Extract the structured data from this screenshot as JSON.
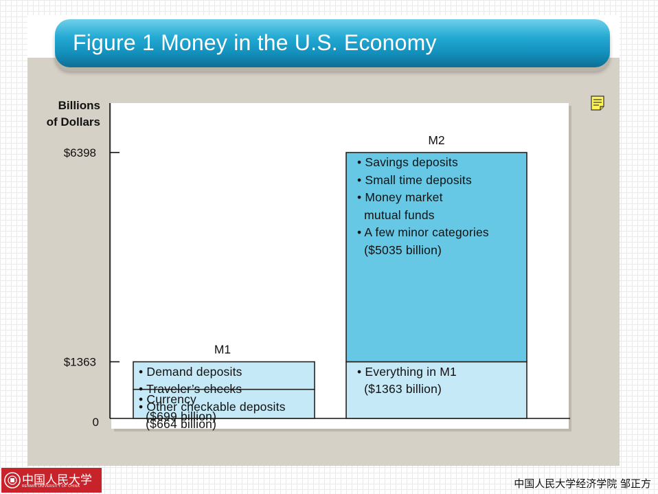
{
  "title": "Figure 1 Money in the U.S. Economy",
  "chart_data": {
    "type": "bar",
    "ylabel": [
      "Billions",
      "of Dollars"
    ],
    "ylim": [
      0,
      6398
    ],
    "yticks": [
      {
        "value": 0,
        "label": "0"
      },
      {
        "value": 1363,
        "label": "$1363"
      },
      {
        "value": 6398,
        "label": "$6398"
      }
    ],
    "categories": [
      "M1",
      "M2"
    ],
    "bars": [
      {
        "name": "M1",
        "segments": [
          {
            "value": 699,
            "lines": [
              "• Currency",
              "  ($699 billion)"
            ],
            "color": "#c5e9f6"
          },
          {
            "value": 664,
            "lines": [
              "• Demand deposits",
              "• Traveler’s checks",
              "• Other checkable deposits",
              "  ($664 billion)"
            ],
            "color": "#c5e9f6"
          }
        ]
      },
      {
        "name": "M2",
        "segments": [
          {
            "value": 1363,
            "lines": [
              "• Everything in M1",
              "  ($1363 billion)"
            ],
            "color": "#c5e9f6"
          },
          {
            "value": 5035,
            "lines": [
              "• Savings deposits",
              "• Small time deposits",
              "• Money market",
              "  mutual funds",
              "• A few minor categories",
              "  ($5035 billion)"
            ],
            "color": "#66c8e4"
          }
        ]
      }
    ],
    "grid": false
  },
  "footer": {
    "logo_text": "中国人民大学",
    "logo_sub": "RENMIN UNIVERSITY OF CHINA",
    "right_text": "中国人民大学经济学院   邹正方"
  },
  "icons": {
    "note": "note-icon",
    "logo": "university-seal-icon"
  }
}
